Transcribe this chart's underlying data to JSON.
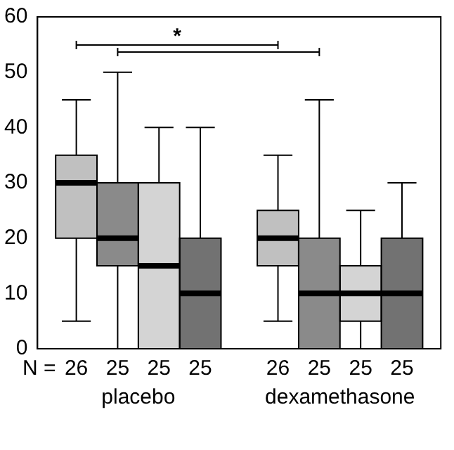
{
  "chart_data": {
    "type": "box",
    "categories": [
      "placebo",
      "dexamethasone"
    ],
    "series": [
      {
        "color": "#c0c0c0",
        "boxes": [
          {
            "low": 5,
            "q1": 20,
            "median": 30,
            "q3": 35,
            "high": 45
          },
          {
            "low": 5,
            "q1": 15,
            "median": 20,
            "q3": 25,
            "high": 35
          }
        ]
      },
      {
        "color": "#8a8a8a",
        "boxes": [
          {
            "low": 0,
            "q1": 15,
            "median": 20,
            "q3": 30,
            "high": 50
          },
          {
            "low": 0,
            "q1": 0,
            "median": 10,
            "q3": 20,
            "high": 45
          }
        ]
      },
      {
        "color": "#d4d4d4",
        "boxes": [
          {
            "low": 0,
            "q1": 0,
            "median": 15,
            "q3": 30,
            "high": 40
          },
          {
            "low": 0,
            "q1": 5,
            "median": 10,
            "q3": 15,
            "high": 25
          }
        ]
      },
      {
        "color": "#727272",
        "boxes": [
          {
            "low": 0,
            "q1": 0,
            "median": 10,
            "q3": 20,
            "high": 40
          },
          {
            "low": 0,
            "q1": 0,
            "median": 10,
            "q3": 20,
            "high": 30
          }
        ]
      }
    ],
    "ylim": [
      0,
      60
    ],
    "yticks": [
      0,
      10,
      20,
      30,
      40,
      50,
      60
    ],
    "grid": false,
    "annotations": [
      "*",
      "N =",
      "26",
      "25",
      "25",
      "25",
      "26",
      "25",
      "25",
      "25"
    ]
  }
}
